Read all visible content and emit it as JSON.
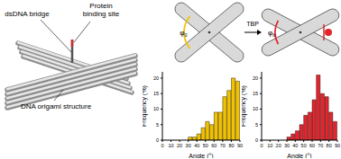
{
  "diagram": {
    "labels": [
      {
        "lines": [
          "dsDNA bridge"
        ]
      },
      {
        "lines": [
          "Protein",
          "binding site"
        ]
      },
      {
        "lines": [
          "DNA origami structure"
        ]
      }
    ],
    "angle_before": {
      "symbol": "φ",
      "subscript": "0"
    },
    "arrow_label": "TBP",
    "angle_after": {
      "symbol": "φ",
      "subscript": "b"
    }
  },
  "chart_data": [
    {
      "type": "histogram",
      "bins": [
        30,
        35,
        40,
        45,
        50,
        55,
        60,
        65,
        70,
        75,
        80,
        85,
        90
      ],
      "values": [
        1,
        1,
        2,
        4,
        6,
        5,
        9,
        9,
        14,
        16,
        20,
        19
      ],
      "color": "#f2c200",
      "xlabel": "Angle (°)",
      "ylabel": "Frequency (%)",
      "xlim": [
        0,
        90
      ],
      "xticks": [
        0,
        10,
        20,
        30,
        40,
        50,
        60,
        70,
        80,
        90
      ],
      "ylim": [
        0,
        22
      ],
      "yticks": [
        0,
        5,
        10,
        15,
        20
      ]
    },
    {
      "type": "histogram",
      "bins": [
        30,
        35,
        40,
        45,
        50,
        55,
        60,
        65,
        70,
        75,
        80,
        85,
        90
      ],
      "values": [
        1,
        2,
        3,
        5,
        8,
        9,
        13,
        21,
        15,
        14,
        9,
        6
      ],
      "color": "#e3262d",
      "xlabel": "Angle (°)",
      "ylabel": "Frequency (%)",
      "xlim": [
        0,
        90
      ],
      "xticks": [
        0,
        10,
        20,
        30,
        40,
        50,
        60,
        70,
        80,
        90
      ],
      "ylim": [
        0,
        22
      ],
      "yticks": [
        0,
        5,
        10,
        15,
        20
      ]
    }
  ]
}
